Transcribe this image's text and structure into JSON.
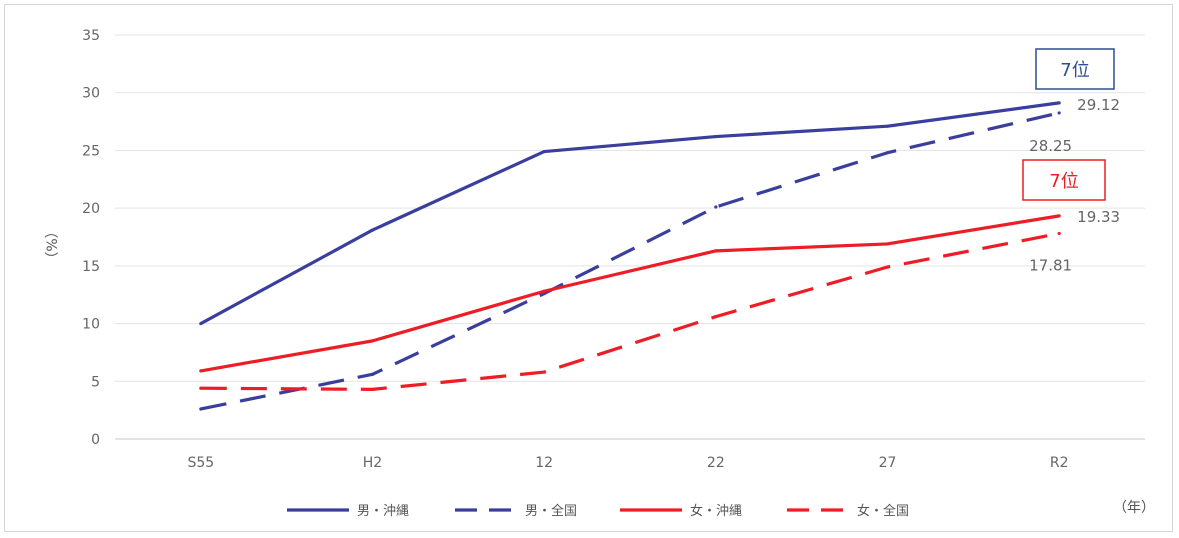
{
  "chart_data": {
    "type": "line",
    "ylabel": "（%）",
    "xunit": "（年）",
    "ylim": [
      0,
      35
    ],
    "yticks": [
      0,
      5,
      10,
      15,
      20,
      25,
      30,
      35
    ],
    "categories": [
      "S55",
      "H2",
      "12",
      "22",
      "27",
      "R2"
    ],
    "grid": true,
    "legend_position": "bottom",
    "series": [
      {
        "name": "男・沖縄",
        "color": "#3a3f9e",
        "dash": false,
        "values": [
          10.0,
          18.1,
          24.9,
          26.2,
          27.1,
          29.12
        ]
      },
      {
        "name": "男・全国",
        "color": "#3a3f9e",
        "dash": true,
        "values": [
          2.6,
          5.6,
          12.6,
          20.1,
          24.8,
          28.25
        ]
      },
      {
        "name": "女・沖縄",
        "color": "#ee1c25",
        "dash": false,
        "values": [
          5.9,
          8.5,
          12.8,
          16.3,
          16.9,
          19.33
        ]
      },
      {
        "name": "女・全国",
        "color": "#ee1c25",
        "dash": true,
        "values": [
          4.4,
          4.3,
          5.8,
          10.6,
          14.9,
          17.81
        ]
      }
    ],
    "value_labels": [
      "29.12",
      "28.25",
      "19.33",
      "17.81"
    ],
    "rank_badges": [
      {
        "text": "7位",
        "color": "#2e4f8f"
      },
      {
        "text": "7位",
        "color": "#ee1c25"
      }
    ]
  }
}
